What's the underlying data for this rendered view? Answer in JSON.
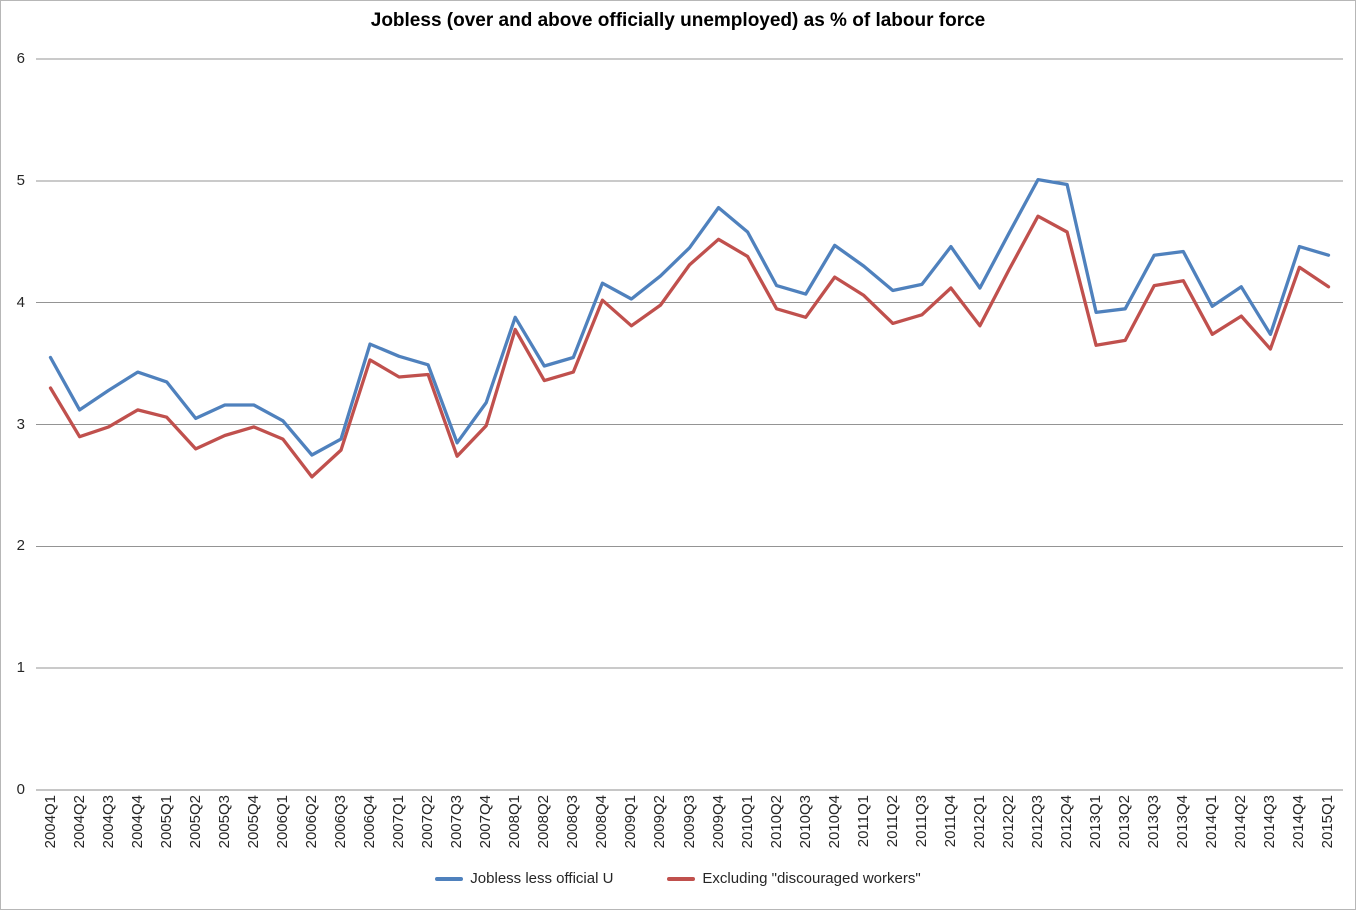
{
  "chart_data": {
    "type": "line",
    "title": "Jobless (over and above officially unemployed) as % of labour force",
    "xlabel": "",
    "ylabel": "",
    "ylim": [
      0,
      6
    ],
    "yticks": [
      0,
      1,
      2,
      3,
      4,
      5,
      6
    ],
    "grid": "horizontal-only",
    "legend_position": "bottom-center",
    "categories": [
      "2004Q1",
      "2004Q2",
      "2004Q3",
      "2004Q4",
      "2005Q1",
      "2005Q2",
      "2005Q3",
      "2005Q4",
      "2006Q1",
      "2006Q2",
      "2006Q3",
      "2006Q4",
      "2007Q1",
      "2007Q2",
      "2007Q3",
      "2007Q4",
      "2008Q1",
      "2008Q2",
      "2008Q3",
      "2008Q4",
      "2009Q1",
      "2009Q2",
      "2009Q3",
      "2009Q4",
      "2010Q1",
      "2010Q2",
      "2010Q3",
      "2010Q4",
      "2011Q1",
      "2011Q2",
      "2011Q3",
      "2011Q4",
      "2012Q1",
      "2012Q2",
      "2012Q3",
      "2012Q4",
      "2013Q1",
      "2013Q2",
      "2013Q3",
      "2013Q4",
      "2014Q1",
      "2014Q2",
      "2014Q3",
      "2014Q4",
      "2015Q1"
    ],
    "series": [
      {
        "name": "Jobless less official U",
        "color": "#4F81BD",
        "values": [
          3.55,
          3.12,
          3.28,
          3.43,
          3.35,
          3.05,
          3.16,
          3.16,
          3.03,
          2.75,
          2.88,
          3.66,
          3.56,
          3.49,
          2.85,
          3.18,
          3.88,
          3.48,
          3.55,
          4.16,
          4.03,
          4.22,
          4.45,
          4.78,
          4.58,
          4.14,
          4.07,
          4.47,
          4.3,
          4.1,
          4.15,
          4.46,
          4.12,
          4.57,
          5.01,
          4.97,
          3.92,
          3.95,
          4.39,
          4.42,
          3.97,
          4.13,
          3.74,
          4.46,
          4.39
        ]
      },
      {
        "name": "Excluding \"discouraged workers\"",
        "color": "#C0504D",
        "values": [
          3.3,
          2.9,
          2.98,
          3.12,
          3.06,
          2.8,
          2.91,
          2.98,
          2.88,
          2.57,
          2.79,
          3.53,
          3.39,
          3.41,
          2.74,
          2.99,
          3.78,
          3.36,
          3.43,
          4.02,
          3.81,
          3.98,
          4.31,
          4.52,
          4.38,
          3.95,
          3.88,
          4.21,
          4.06,
          3.83,
          3.9,
          4.12,
          3.81,
          4.27,
          4.71,
          4.58,
          3.65,
          3.69,
          4.14,
          4.18,
          3.74,
          3.89,
          3.62,
          4.29,
          4.13
        ]
      }
    ],
    "colors": {
      "gridline": "#949494",
      "axis_line": "#8c8c8c",
      "tick_text": "#262626",
      "title_text": "#000000",
      "chart_border": "#b7b7b7",
      "background": "#ffffff"
    }
  }
}
